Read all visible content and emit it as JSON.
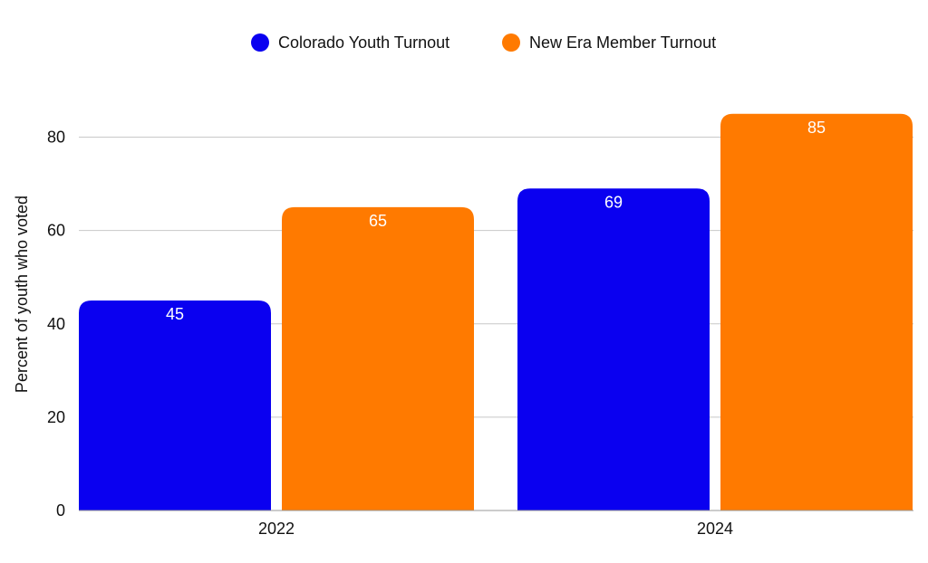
{
  "chart_data": {
    "type": "bar",
    "categories": [
      "2022",
      "2024"
    ],
    "series": [
      {
        "name": "Colorado Youth Turnout",
        "values": [
          45,
          69
        ],
        "color": "#0a00f0"
      },
      {
        "name": "New Era Member Turnout",
        "values": [
          65,
          85
        ],
        "color": "#ff7a00"
      }
    ],
    "title": "",
    "xlabel": "",
    "ylabel": "Percent of youth who voted",
    "ylim": [
      0,
      90
    ],
    "yticks": [
      0,
      20,
      40,
      60,
      80
    ],
    "grid": true,
    "legend_position": "top-center",
    "data_labels": true
  }
}
